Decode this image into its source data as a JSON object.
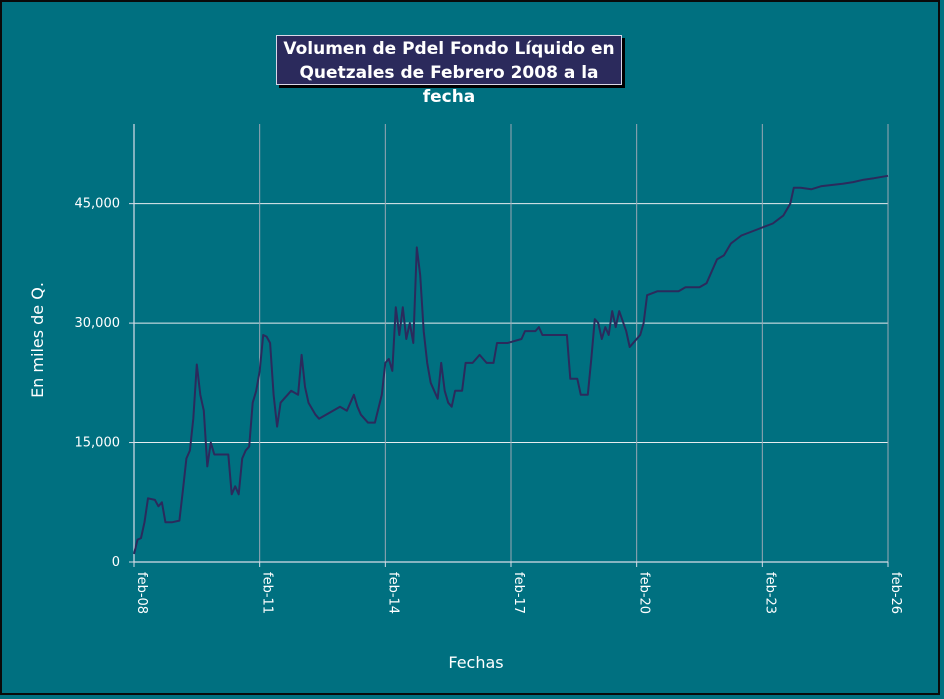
{
  "chart_data": {
    "type": "line",
    "title_lines": [
      "Volumen de Pdel Fondo Líquido en",
      "Quetzales de Febrero 2008 a la fecha"
    ],
    "xlabel": "Fechas",
    "ylabel": "En miles de Q.",
    "x_ticks": [
      "feb-08",
      "feb-11",
      "feb-14",
      "feb-17",
      "feb-20",
      "feb-23",
      "feb-26"
    ],
    "y_ticks": [
      "0",
      "15,000",
      "30,000",
      "45,000"
    ],
    "y_tick_values": [
      0,
      15000,
      30000,
      45000
    ],
    "ylim": [
      0,
      55000
    ],
    "xlim": [
      "2008-02",
      "2026-02"
    ],
    "grid": true,
    "series": [
      {
        "color": "#2b2a5c",
        "points": [
          [
            "2008-02",
            1000
          ],
          [
            "2008-03",
            2800
          ],
          [
            "2008-04",
            3000
          ],
          [
            "2008-05",
            5000
          ],
          [
            "2008-06",
            8000
          ],
          [
            "2008-08",
            7800
          ],
          [
            "2008-09",
            7000
          ],
          [
            "2008-10",
            7500
          ],
          [
            "2008-11",
            5000
          ],
          [
            "2009-01",
            5000
          ],
          [
            "2009-03",
            5200
          ],
          [
            "2009-04",
            9000
          ],
          [
            "2009-05",
            13000
          ],
          [
            "2009-06",
            14000
          ],
          [
            "2009-07",
            18000
          ],
          [
            "2009-08",
            24800
          ],
          [
            "2009-09",
            21000
          ],
          [
            "2009-10",
            19000
          ],
          [
            "2009-11",
            12000
          ],
          [
            "2009-12",
            15000
          ],
          [
            "2010-01",
            13500
          ],
          [
            "2010-03",
            13500
          ],
          [
            "2010-05",
            13500
          ],
          [
            "2010-06",
            8500
          ],
          [
            "2010-07",
            9500
          ],
          [
            "2010-08",
            8500
          ],
          [
            "2010-09",
            13000
          ],
          [
            "2010-10",
            14000
          ],
          [
            "2010-11",
            14500
          ],
          [
            "2010-12",
            20000
          ],
          [
            "2011-01",
            21500
          ],
          [
            "2011-02",
            24000
          ],
          [
            "2011-03",
            28500
          ],
          [
            "2011-04",
            28300
          ],
          [
            "2011-05",
            27500
          ],
          [
            "2011-06",
            21000
          ],
          [
            "2011-07",
            17000
          ],
          [
            "2011-08",
            20000
          ],
          [
            "2011-09",
            20500
          ],
          [
            "2011-10",
            21000
          ],
          [
            "2011-11",
            21500
          ],
          [
            "2012-01",
            21000
          ],
          [
            "2012-02",
            26000
          ],
          [
            "2012-03",
            22000
          ],
          [
            "2012-04",
            20000
          ],
          [
            "2012-06",
            18500
          ],
          [
            "2012-07",
            18000
          ],
          [
            "2012-09",
            18500
          ],
          [
            "2012-11",
            19000
          ],
          [
            "2013-01",
            19500
          ],
          [
            "2013-03",
            19000
          ],
          [
            "2013-05",
            21000
          ],
          [
            "2013-06",
            19500
          ],
          [
            "2013-07",
            18500
          ],
          [
            "2013-09",
            17500
          ],
          [
            "2013-11",
            17500
          ],
          [
            "2014-01",
            21000
          ],
          [
            "2014-02",
            25000
          ],
          [
            "2014-03",
            25500
          ],
          [
            "2014-04",
            24000
          ],
          [
            "2014-05",
            32000
          ],
          [
            "2014-06",
            28500
          ],
          [
            "2014-07",
            32000
          ],
          [
            "2014-08",
            28000
          ],
          [
            "2014-09",
            30000
          ],
          [
            "2014-10",
            27500
          ],
          [
            "2014-11",
            39500
          ],
          [
            "2014-12",
            36000
          ],
          [
            "2015-01",
            29000
          ],
          [
            "2015-02",
            25000
          ],
          [
            "2015-03",
            22500
          ],
          [
            "2015-04",
            21500
          ],
          [
            "2015-05",
            20500
          ],
          [
            "2015-06",
            25000
          ],
          [
            "2015-07",
            21500
          ],
          [
            "2015-08",
            20000
          ],
          [
            "2015-09",
            19500
          ],
          [
            "2015-10",
            21500
          ],
          [
            "2015-12",
            21500
          ],
          [
            "2016-01",
            25000
          ],
          [
            "2016-03",
            25000
          ],
          [
            "2016-05",
            26000
          ],
          [
            "2016-07",
            25000
          ],
          [
            "2016-09",
            25000
          ],
          [
            "2016-10",
            27500
          ],
          [
            "2017-01",
            27500
          ],
          [
            "2017-05",
            28000
          ],
          [
            "2017-06",
            29000
          ],
          [
            "2017-09",
            29000
          ],
          [
            "2017-10",
            29500
          ],
          [
            "2017-11",
            28500
          ],
          [
            "2018-06",
            28500
          ],
          [
            "2018-07",
            23000
          ],
          [
            "2018-09",
            23000
          ],
          [
            "2018-10",
            21000
          ],
          [
            "2018-12",
            21000
          ],
          [
            "2019-01",
            25500
          ],
          [
            "2019-02",
            30500
          ],
          [
            "2019-03",
            30000
          ],
          [
            "2019-04",
            28000
          ],
          [
            "2019-05",
            29500
          ],
          [
            "2019-06",
            28500
          ],
          [
            "2019-07",
            31500
          ],
          [
            "2019-08",
            29500
          ],
          [
            "2019-09",
            31500
          ],
          [
            "2019-11",
            29000
          ],
          [
            "2019-12",
            27000
          ],
          [
            "2020-03",
            28500
          ],
          [
            "2020-04",
            30000
          ],
          [
            "2020-05",
            33500
          ],
          [
            "2020-08",
            34000
          ],
          [
            "2020-11",
            34000
          ],
          [
            "2021-02",
            34000
          ],
          [
            "2021-04",
            34500
          ],
          [
            "2021-08",
            34500
          ],
          [
            "2021-10",
            35000
          ],
          [
            "2022-01",
            38000
          ],
          [
            "2022-03",
            38500
          ],
          [
            "2022-05",
            40000
          ],
          [
            "2022-08",
            41000
          ],
          [
            "2022-11",
            41500
          ],
          [
            "2023-02",
            42000
          ],
          [
            "2023-05",
            42500
          ],
          [
            "2023-08",
            43500
          ],
          [
            "2023-10",
            45000
          ],
          [
            "2023-11",
            47000
          ],
          [
            "2024-01",
            47000
          ],
          [
            "2024-04",
            46800
          ],
          [
            "2024-07",
            47200
          ],
          [
            "2025-01",
            47500
          ],
          [
            "2025-04",
            47700
          ],
          [
            "2025-07",
            48000
          ],
          [
            "2025-10",
            48200
          ],
          [
            "2026-02",
            48500
          ]
        ]
      }
    ]
  }
}
